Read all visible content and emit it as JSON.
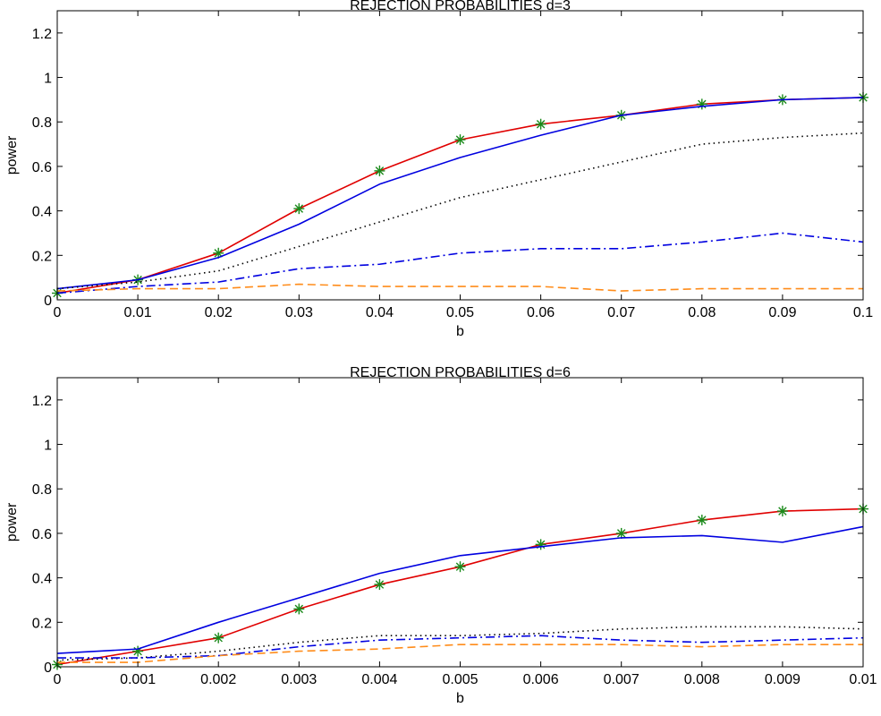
{
  "chart_data": [
    {
      "type": "line",
      "title": "REJECTION PROBABILITIES d=3",
      "xlabel": "b",
      "ylabel": "power",
      "xlim": [
        0,
        0.1
      ],
      "ylim": [
        0,
        1.3
      ],
      "x_ticks": [
        0,
        0.01,
        0.02,
        0.03,
        0.04,
        0.05,
        0.06,
        0.07,
        0.08,
        0.09,
        0.1
      ],
      "x_tick_labels": [
        "0",
        "0.01",
        "0.02",
        "0.03",
        "0.04",
        "0.05",
        "0.06",
        "0.07",
        "0.08",
        "0.09",
        "0.1"
      ],
      "y_ticks": [
        0,
        0.2,
        0.4,
        0.6,
        0.8,
        1,
        1.2
      ],
      "y_tick_labels": [
        "0",
        "0.2",
        "0.4",
        "0.6",
        "0.8",
        "1",
        "1.2"
      ],
      "grid": false,
      "x": [
        0,
        0.01,
        0.02,
        0.03,
        0.04,
        0.05,
        0.06,
        0.07,
        0.08,
        0.09,
        0.1
      ],
      "series": [
        {
          "color": "#e00000",
          "style": "solid",
          "marker": "asterisk",
          "marker_color": "#1a8a1a",
          "values": [
            0.03,
            0.09,
            0.21,
            0.41,
            0.58,
            0.72,
            0.79,
            0.83,
            0.88,
            0.9,
            0.91
          ]
        },
        {
          "color": "#0000e0",
          "style": "solid",
          "marker": "none",
          "values": [
            0.05,
            0.09,
            0.19,
            0.34,
            0.52,
            0.64,
            0.74,
            0.83,
            0.87,
            0.9,
            0.91
          ]
        },
        {
          "color": "#000000",
          "style": "dotted",
          "marker": "none",
          "values": [
            0.05,
            0.08,
            0.13,
            0.24,
            0.35,
            0.46,
            0.54,
            0.62,
            0.7,
            0.73,
            0.75
          ]
        },
        {
          "color": "#0000e0",
          "style": "dashdot",
          "marker": "none",
          "values": [
            0.03,
            0.06,
            0.08,
            0.14,
            0.16,
            0.21,
            0.23,
            0.23,
            0.26,
            0.3,
            0.26
          ]
        },
        {
          "color": "#ff8c1a",
          "style": "dashed",
          "marker": "none",
          "values": [
            0.04,
            0.05,
            0.05,
            0.07,
            0.06,
            0.06,
            0.06,
            0.04,
            0.05,
            0.05,
            0.05
          ]
        }
      ]
    },
    {
      "type": "line",
      "title": "REJECTION PROBABILITIES d=6",
      "xlabel": "b",
      "ylabel": "power",
      "xlim": [
        0,
        0.01
      ],
      "ylim": [
        0,
        1.3
      ],
      "x_ticks": [
        0,
        0.001,
        0.002,
        0.003,
        0.004,
        0.005,
        0.006,
        0.007,
        0.008,
        0.009,
        0.01
      ],
      "x_tick_labels": [
        "0",
        "0.001",
        "0.002",
        "0.003",
        "0.004",
        "0.005",
        "0.006",
        "0.007",
        "0.008",
        "0.009",
        "0.01"
      ],
      "y_ticks": [
        0,
        0.2,
        0.4,
        0.6,
        0.8,
        1,
        1.2
      ],
      "y_tick_labels": [
        "0",
        "0.2",
        "0.4",
        "0.6",
        "0.8",
        "1",
        "1.2"
      ],
      "grid": false,
      "x": [
        0,
        0.001,
        0.002,
        0.003,
        0.004,
        0.005,
        0.006,
        0.007,
        0.008,
        0.009,
        0.01
      ],
      "series": [
        {
          "color": "#e00000",
          "style": "solid",
          "marker": "asterisk",
          "marker_color": "#1a8a1a",
          "values": [
            0.01,
            0.07,
            0.13,
            0.26,
            0.37,
            0.45,
            0.55,
            0.6,
            0.66,
            0.7,
            0.71
          ]
        },
        {
          "color": "#0000e0",
          "style": "solid",
          "marker": "none",
          "values": [
            0.06,
            0.08,
            0.2,
            0.31,
            0.42,
            0.5,
            0.54,
            0.58,
            0.59,
            0.56,
            0.63
          ]
        },
        {
          "color": "#000000",
          "style": "dotted",
          "marker": "none",
          "values": [
            0.03,
            0.04,
            0.07,
            0.11,
            0.14,
            0.14,
            0.15,
            0.17,
            0.18,
            0.18,
            0.17
          ]
        },
        {
          "color": "#0000e0",
          "style": "dashdot",
          "marker": "none",
          "values": [
            0.04,
            0.04,
            0.05,
            0.09,
            0.12,
            0.13,
            0.14,
            0.12,
            0.11,
            0.12,
            0.13
          ]
        },
        {
          "color": "#ff8c1a",
          "style": "dashed",
          "marker": "none",
          "values": [
            0.02,
            0.02,
            0.05,
            0.07,
            0.08,
            0.1,
            0.1,
            0.1,
            0.09,
            0.1,
            0.1
          ]
        }
      ]
    }
  ]
}
